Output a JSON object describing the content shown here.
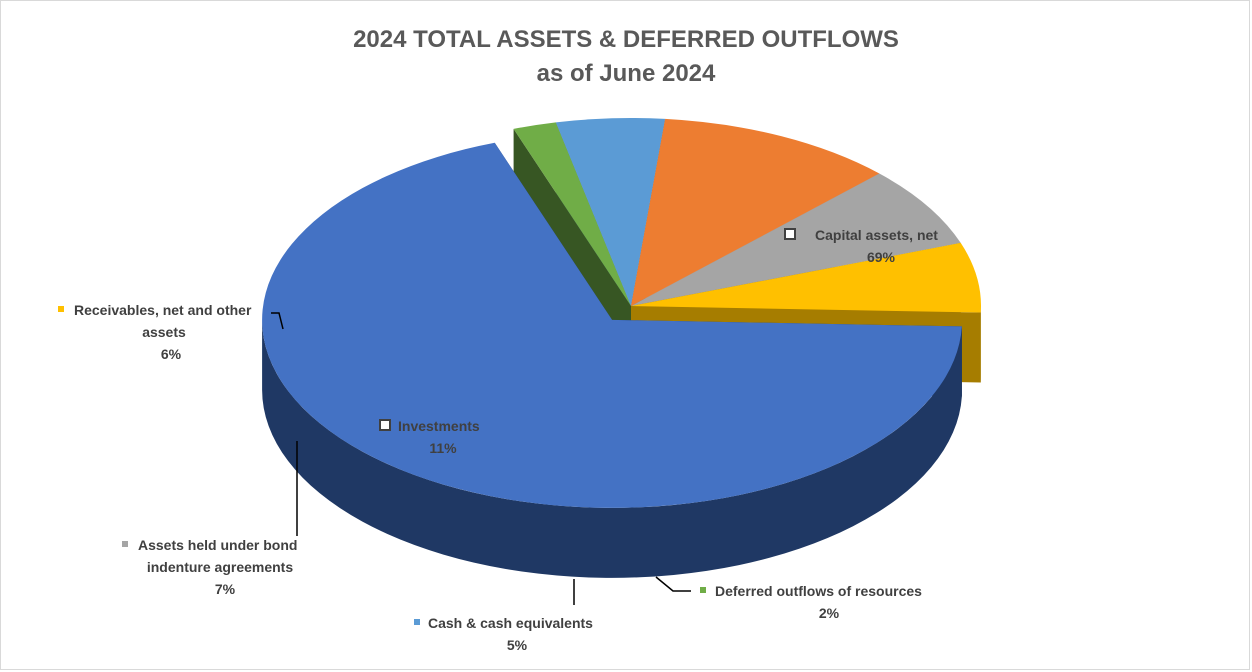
{
  "chart_data": {
    "type": "pie",
    "title": "2024 TOTAL ASSETS & DEFERRED OUTFLOWS",
    "subtitle": "as of June 2024",
    "data_labels": true,
    "style": "3d-exploded",
    "slices": [
      {
        "label": "Capital assets, net",
        "value": 69,
        "value_label": "69%",
        "color": "#4472C4",
        "side_color": "#1F3864"
      },
      {
        "label": "Deferred outflows of resources",
        "value": 2,
        "value_label": "2%",
        "color": "#70AD47",
        "side_color": "#375623"
      },
      {
        "label": "Cash & cash equivalents",
        "value": 5,
        "value_label": "5%",
        "color": "#5B9BD5",
        "side_color": "#3A6A92"
      },
      {
        "label": "Investments",
        "value": 11,
        "value_label": "11%",
        "color": "#ED7D31",
        "side_color": "#A8521A"
      },
      {
        "label": "Assets held under bond indenture agreements",
        "value": 7,
        "value_label": "7%",
        "color": "#A5A5A5",
        "side_color": "#6E6E6E"
      },
      {
        "label": "Receivables, net and other assets",
        "value": 6,
        "value_label": "6%",
        "color": "#FFC000",
        "side_color": "#A67D00"
      }
    ]
  }
}
